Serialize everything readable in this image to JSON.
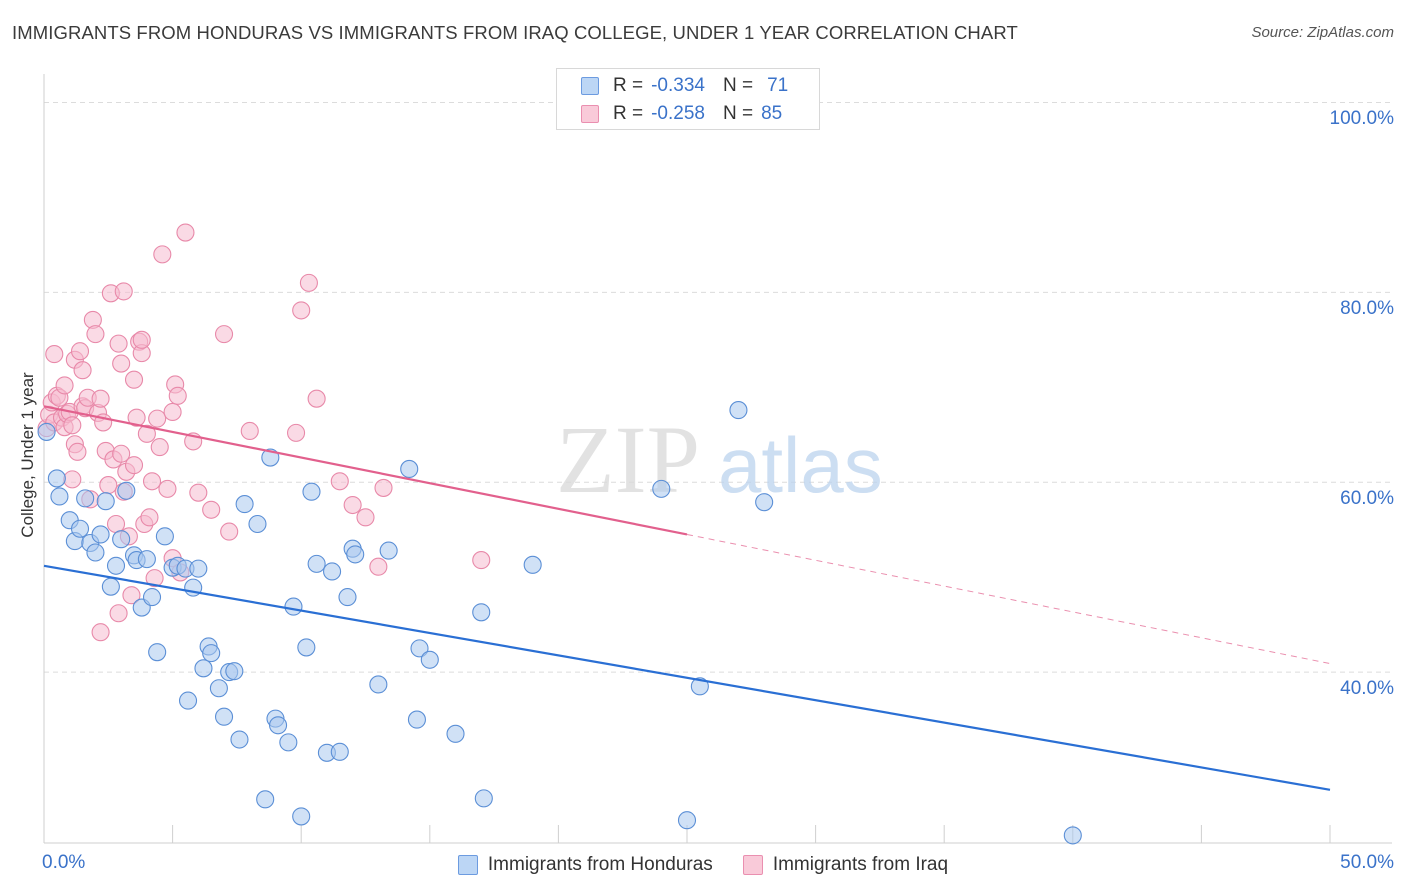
{
  "title": "IMMIGRANTS FROM HONDURAS VS IMMIGRANTS FROM IRAQ COLLEGE, UNDER 1 YEAR CORRELATION CHART",
  "source": "Source: ZipAtlas.com",
  "watermark": {
    "zip": "ZIP",
    "atlas": "atlas"
  },
  "colors": {
    "honduras_fill": "#a9c8ef",
    "honduras_stroke": "#5b8fd6",
    "honduras_line": "#2a6fd4",
    "iraq_fill": "#f6bcd0",
    "iraq_stroke": "#e889a9",
    "iraq_line": "#e2608d",
    "grid": "#dcdcdc",
    "axis_text": "#3a72c9"
  },
  "legend_top": {
    "rows": [
      {
        "r_label": "R =",
        "r_value": "-0.334",
        "n_label": "N =",
        "n_value": "71"
      },
      {
        "r_label": "R =",
        "r_value": "-0.258",
        "n_label": "N =",
        "n_value": "85"
      }
    ]
  },
  "legend_bottom": [
    "Immigrants from Honduras",
    "Immigrants from Iraq"
  ],
  "chart_data": {
    "type": "scatter",
    "xlabel": "",
    "ylabel": "College, Under 1 year",
    "xlim": [
      0,
      50
    ],
    "ylim": [
      22,
      103
    ],
    "x_tick_labels": [
      {
        "value": 0,
        "label": "0.0%"
      },
      {
        "value": 50,
        "label": "50.0%"
      }
    ],
    "y_tick_labels": [
      {
        "value": 100,
        "label": "100.0%"
      },
      {
        "value": 80,
        "label": "80.0%"
      },
      {
        "value": 60,
        "label": "60.0%"
      },
      {
        "value": 40,
        "label": "40.0%"
      }
    ],
    "y_gridlines": [
      100,
      80,
      60,
      40
    ],
    "series": [
      {
        "name": "Immigrants from Honduras",
        "trend": {
          "x": [
            0,
            50
          ],
          "y": [
            51.2,
            27.6
          ],
          "style": "solid"
        },
        "points": [
          [
            0.1,
            65.3
          ],
          [
            0.5,
            60.4
          ],
          [
            0.6,
            58.5
          ],
          [
            1.0,
            56.0
          ],
          [
            1.2,
            53.8
          ],
          [
            1.4,
            55.1
          ],
          [
            1.6,
            58.3
          ],
          [
            1.8,
            53.6
          ],
          [
            2.0,
            52.6
          ],
          [
            2.2,
            54.5
          ],
          [
            2.4,
            58.0
          ],
          [
            2.6,
            49.0
          ],
          [
            2.8,
            51.2
          ],
          [
            3.0,
            54.0
          ],
          [
            3.2,
            59.1
          ],
          [
            3.5,
            52.3
          ],
          [
            3.6,
            51.8
          ],
          [
            3.8,
            46.8
          ],
          [
            4.0,
            51.9
          ],
          [
            4.2,
            47.9
          ],
          [
            4.4,
            42.1
          ],
          [
            4.7,
            54.3
          ],
          [
            5.0,
            51.0
          ],
          [
            5.2,
            51.2
          ],
          [
            5.5,
            50.9
          ],
          [
            5.6,
            37.0
          ],
          [
            5.8,
            48.9
          ],
          [
            6.0,
            50.9
          ],
          [
            6.2,
            40.4
          ],
          [
            6.4,
            42.7
          ],
          [
            6.5,
            42.0
          ],
          [
            6.8,
            38.3
          ],
          [
            7.0,
            35.3
          ],
          [
            7.2,
            40.0
          ],
          [
            7.4,
            40.1
          ],
          [
            7.6,
            32.9
          ],
          [
            7.8,
            57.7
          ],
          [
            8.3,
            55.6
          ],
          [
            8.6,
            26.6
          ],
          [
            8.8,
            62.6
          ],
          [
            9.0,
            35.1
          ],
          [
            9.1,
            34.4
          ],
          [
            9.5,
            32.6
          ],
          [
            9.7,
            46.9
          ],
          [
            10.0,
            24.8
          ],
          [
            10.2,
            42.6
          ],
          [
            10.4,
            59.0
          ],
          [
            10.6,
            51.4
          ],
          [
            11.0,
            31.5
          ],
          [
            11.2,
            50.6
          ],
          [
            11.5,
            31.6
          ],
          [
            11.8,
            47.9
          ],
          [
            12.0,
            53.0
          ],
          [
            12.1,
            52.4
          ],
          [
            13.0,
            38.7
          ],
          [
            13.4,
            52.8
          ],
          [
            14.2,
            61.4
          ],
          [
            14.5,
            35.0
          ],
          [
            14.6,
            42.5
          ],
          [
            15.0,
            41.3
          ],
          [
            16.0,
            33.5
          ],
          [
            17.0,
            46.3
          ],
          [
            17.1,
            26.7
          ],
          [
            19.0,
            51.3
          ],
          [
            24.0,
            59.3
          ],
          [
            25.0,
            24.4
          ],
          [
            25.5,
            38.5
          ],
          [
            27.0,
            67.6
          ],
          [
            28.0,
            57.9
          ],
          [
            40.0,
            22.8
          ]
        ]
      },
      {
        "name": "Immigrants from Iraq",
        "trend": {
          "x": [
            0,
            25.0
          ],
          "y": [
            68.0,
            54.5
          ],
          "style": "solid"
        },
        "trend_extension": {
          "x": [
            25.0,
            50
          ],
          "y": [
            54.5,
            40.9
          ],
          "style": "dashed"
        },
        "points": [
          [
            0.1,
            65.7
          ],
          [
            0.2,
            67.1
          ],
          [
            0.3,
            68.4
          ],
          [
            0.4,
            66.3
          ],
          [
            0.4,
            73.5
          ],
          [
            0.5,
            69.1
          ],
          [
            0.6,
            68.9
          ],
          [
            0.7,
            66.8
          ],
          [
            0.8,
            65.8
          ],
          [
            0.9,
            67.2
          ],
          [
            1.0,
            67.4
          ],
          [
            1.1,
            66.0
          ],
          [
            1.2,
            72.9
          ],
          [
            1.2,
            64.0
          ],
          [
            1.3,
            63.2
          ],
          [
            1.4,
            73.8
          ],
          [
            1.5,
            71.8
          ],
          [
            1.5,
            68.0
          ],
          [
            1.6,
            67.8
          ],
          [
            1.7,
            68.9
          ],
          [
            1.8,
            58.2
          ],
          [
            1.9,
            77.1
          ],
          [
            2.0,
            75.6
          ],
          [
            2.1,
            67.3
          ],
          [
            2.2,
            68.8
          ],
          [
            2.3,
            66.3
          ],
          [
            2.4,
            63.3
          ],
          [
            2.5,
            59.7
          ],
          [
            2.6,
            79.9
          ],
          [
            2.7,
            62.4
          ],
          [
            2.8,
            55.6
          ],
          [
            2.9,
            74.6
          ],
          [
            3.0,
            72.5
          ],
          [
            3.0,
            63.0
          ],
          [
            3.1,
            59.0
          ],
          [
            3.2,
            61.1
          ],
          [
            3.3,
            54.3
          ],
          [
            3.4,
            48.1
          ],
          [
            3.5,
            70.8
          ],
          [
            3.5,
            61.8
          ],
          [
            3.6,
            66.8
          ],
          [
            3.7,
            74.8
          ],
          [
            3.8,
            73.6
          ],
          [
            3.9,
            55.6
          ],
          [
            4.0,
            65.1
          ],
          [
            4.1,
            56.3
          ],
          [
            4.2,
            60.1
          ],
          [
            4.3,
            49.9
          ],
          [
            4.4,
            66.7
          ],
          [
            4.5,
            63.7
          ],
          [
            4.6,
            84.0
          ],
          [
            4.8,
            59.3
          ],
          [
            5.0,
            67.4
          ],
          [
            5.0,
            52.0
          ],
          [
            5.1,
            70.3
          ],
          [
            5.2,
            69.1
          ],
          [
            5.3,
            50.5
          ],
          [
            5.5,
            86.3
          ],
          [
            5.8,
            64.3
          ],
          [
            6.0,
            58.9
          ],
          [
            6.5,
            57.1
          ],
          [
            7.0,
            75.6
          ],
          [
            7.2,
            54.8
          ],
          [
            8.0,
            65.4
          ],
          [
            9.8,
            65.2
          ],
          [
            10.0,
            78.1
          ],
          [
            10.3,
            81.0
          ],
          [
            10.6,
            68.8
          ],
          [
            11.5,
            60.1
          ],
          [
            12.0,
            57.6
          ],
          [
            12.5,
            56.3
          ],
          [
            13.0,
            51.1
          ],
          [
            13.2,
            59.4
          ],
          [
            17.0,
            51.8
          ],
          [
            3.1,
            80.1
          ],
          [
            2.2,
            44.2
          ],
          [
            1.1,
            60.3
          ],
          [
            0.8,
            70.2
          ],
          [
            2.9,
            46.2
          ],
          [
            3.8,
            75.0
          ]
        ]
      }
    ]
  }
}
